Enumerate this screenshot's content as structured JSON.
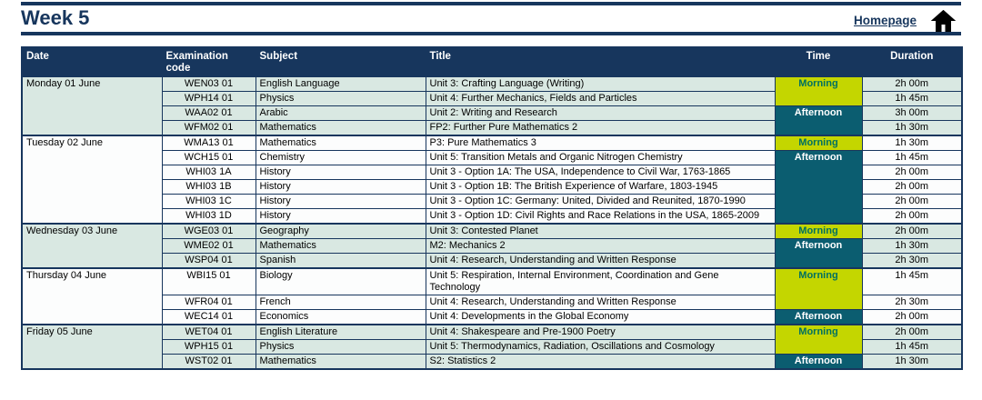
{
  "page": {
    "title": "Week 5",
    "homepage_label": "Homepage",
    "home_icon": "home-icon"
  },
  "colors": {
    "navy": "#17365d",
    "header_text": "#ffffff",
    "morning_bg": "#c4d600",
    "morning_text": "#007060",
    "afternoon_bg": "#0b5d70",
    "afternoon_text": "#ffffff",
    "day_shaded_bg": "#d9e8e2",
    "day_plain_bg": "#fcfdfd"
  },
  "table": {
    "headers": [
      "Date",
      "Examination code",
      "Subject",
      "Title",
      "Time",
      "Duration"
    ],
    "days": [
      {
        "date": "Monday 01 June",
        "shaded": true,
        "rows": [
          {
            "code": "WEN03 01",
            "subject": "English Language",
            "title": "Unit 3: Crafting Language (Writing)",
            "time": {
              "label": "Morning",
              "span": 2
            },
            "duration": "2h 00m"
          },
          {
            "code": "WPH14 01",
            "subject": "Physics",
            "title": "Unit 4: Further Mechanics, Fields and Particles",
            "time": null,
            "duration": "1h 45m"
          },
          {
            "code": "WAA02 01",
            "subject": "Arabic",
            "title": "Unit 2: Writing and Research",
            "time": {
              "label": "Afternoon",
              "span": 2
            },
            "duration": "3h 00m"
          },
          {
            "code": "WFM02 01",
            "subject": "Mathematics",
            "title": "FP2: Further Pure Mathematics 2",
            "time": null,
            "duration": "1h 30m"
          }
        ]
      },
      {
        "date": "Tuesday 02 June",
        "shaded": false,
        "rows": [
          {
            "code": "WMA13 01",
            "subject": "Mathematics",
            "title": "P3: Pure Mathematics 3",
            "time": {
              "label": "Morning",
              "span": 1
            },
            "duration": "1h 30m"
          },
          {
            "code": "WCH15 01",
            "subject": "Chemistry",
            "title": "Unit 5: Transition Metals and Organic Nitrogen Chemistry",
            "time": {
              "label": "Afternoon",
              "span": 5
            },
            "duration": "1h 45m"
          },
          {
            "code": "WHI03 1A",
            "subject": "History",
            "title": "Unit 3 - Option 1A: The USA, Independence to Civil War, 1763-1865",
            "time": null,
            "duration": "2h 00m"
          },
          {
            "code": "WHI03 1B",
            "subject": "History",
            "title": "Unit 3 - Option 1B: The British Experience of Warfare, 1803-1945",
            "time": null,
            "duration": "2h 00m"
          },
          {
            "code": "WHI03 1C",
            "subject": "History",
            "title": "Unit 3 - Option 1C: Germany: United, Divided and Reunited, 1870-1990",
            "time": null,
            "duration": "2h 00m"
          },
          {
            "code": "WHI03 1D",
            "subject": "History",
            "title": "Unit 3 - Option 1D: Civil Rights and Race Relations in the USA, 1865-2009",
            "time": null,
            "duration": "2h 00m"
          }
        ]
      },
      {
        "date": "Wednesday 03 June",
        "shaded": true,
        "rows": [
          {
            "code": "WGE03 01",
            "subject": "Geography",
            "title": "Unit 3: Contested Planet",
            "time": {
              "label": "Morning",
              "span": 1
            },
            "duration": "2h 00m"
          },
          {
            "code": "WME02 01",
            "subject": "Mathematics",
            "title": "M2: Mechanics 2",
            "time": {
              "label": "Afternoon",
              "span": 2
            },
            "duration": "1h 30m"
          },
          {
            "code": "WSP04 01",
            "subject": "Spanish",
            "title": "Unit 4: Research, Understanding and Written Response",
            "time": null,
            "duration": "2h 30m"
          }
        ]
      },
      {
        "date": "Thursday 04 June",
        "shaded": false,
        "rows": [
          {
            "code": "WBI15 01",
            "subject": "Biology",
            "title": "Unit 5: Respiration, Internal Environment, Coordination and Gene Technology",
            "time": {
              "label": "Morning",
              "span": 2
            },
            "duration": "1h 45m"
          },
          {
            "code": "WFR04 01",
            "subject": "French",
            "title": "Unit 4: Research, Understanding and Written Response",
            "time": null,
            "duration": "2h 30m"
          },
          {
            "code": "WEC14 01",
            "subject": "Economics",
            "title": "Unit 4: Developments in the Global Economy",
            "time": {
              "label": "Afternoon",
              "span": 1
            },
            "duration": "2h 00m"
          }
        ]
      },
      {
        "date": "Friday 05 June",
        "shaded": true,
        "rows": [
          {
            "code": "WET04 01",
            "subject": "English Literature",
            "title": "Unit 4: Shakespeare and Pre-1900 Poetry",
            "time": {
              "label": "Morning",
              "span": 2
            },
            "duration": "2h 00m"
          },
          {
            "code": "WPH15 01",
            "subject": "Physics",
            "title": "Unit 5: Thermodynamics, Radiation, Oscillations and Cosmology",
            "time": null,
            "duration": "1h 45m"
          },
          {
            "code": "WST02 01",
            "subject": "Mathematics",
            "title": "S2: Statistics 2",
            "time": {
              "label": "Afternoon",
              "span": 1
            },
            "duration": "1h 30m"
          }
        ]
      }
    ]
  }
}
